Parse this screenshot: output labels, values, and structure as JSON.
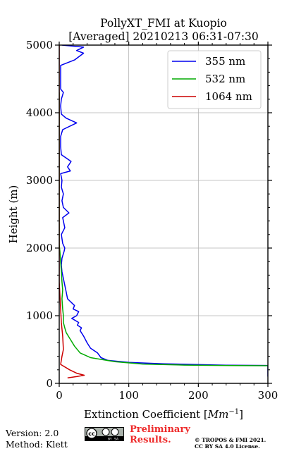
{
  "chart_data": {
    "type": "line",
    "title": "PollyXT_FMI at Kuopio",
    "subtitle": "[Averaged] 20210213 06:31-07:30",
    "xlabel": "Extinction Coefficient [Mm⁻¹]",
    "ylabel": "Height (m)",
    "xlim": [
      0,
      300
    ],
    "ylim": [
      0,
      5000
    ],
    "xticks": [
      "0",
      "100",
      "200",
      "300"
    ],
    "yticks": [
      "0",
      "1000",
      "2000",
      "3000",
      "4000",
      "5000"
    ],
    "grid": true,
    "legend_position": "top-right",
    "series": [
      {
        "name": "355 nm",
        "color": "#0000ee",
        "points": [
          [
            300,
            100
          ],
          [
            300,
            265
          ],
          [
            240,
            268
          ],
          [
            150,
            290
          ],
          [
            100,
            310
          ],
          [
            70,
            340
          ],
          [
            60,
            380
          ],
          [
            55,
            450
          ],
          [
            45,
            520
          ],
          [
            40,
            600
          ],
          [
            35,
            700
          ],
          [
            30,
            780
          ],
          [
            32,
            820
          ],
          [
            26,
            860
          ],
          [
            28,
            900
          ],
          [
            18,
            960
          ],
          [
            25,
            1000
          ],
          [
            28,
            1060
          ],
          [
            20,
            1100
          ],
          [
            22,
            1150
          ],
          [
            12,
            1250
          ],
          [
            10,
            1350
          ],
          [
            8,
            1450
          ],
          [
            6,
            1550
          ],
          [
            4,
            1650
          ],
          [
            3,
            1750
          ],
          [
            4,
            1850
          ],
          [
            7,
            1950
          ],
          [
            8,
            2000
          ],
          [
            5,
            2070
          ],
          [
            3,
            2200
          ],
          [
            8,
            2300
          ],
          [
            5,
            2450
          ],
          [
            14,
            2520
          ],
          [
            6,
            2600
          ],
          [
            4,
            2700
          ],
          [
            6,
            2800
          ],
          [
            3,
            2900
          ],
          [
            4,
            3000
          ],
          [
            3,
            3050
          ],
          [
            2,
            3100
          ],
          [
            16,
            3140
          ],
          [
            12,
            3200
          ],
          [
            17,
            3280
          ],
          [
            10,
            3330
          ],
          [
            3,
            3380
          ],
          [
            2,
            3500
          ],
          [
            2,
            3650
          ],
          [
            5,
            3750
          ],
          [
            25,
            3850
          ],
          [
            10,
            3920
          ],
          [
            3,
            3980
          ],
          [
            2,
            4100
          ],
          [
            3,
            4200
          ],
          [
            6,
            4300
          ],
          [
            2,
            4350
          ],
          [
            2,
            4700
          ],
          [
            22,
            4780
          ],
          [
            35,
            4880
          ],
          [
            25,
            4920
          ],
          [
            35,
            4970
          ],
          [
            4,
            5000
          ]
        ]
      },
      {
        "name": "532 nm",
        "color": "#00aa00",
        "points": [
          [
            300,
            260
          ],
          [
            250,
            263
          ],
          [
            180,
            270
          ],
          [
            120,
            285
          ],
          [
            80,
            320
          ],
          [
            45,
            380
          ],
          [
            30,
            450
          ],
          [
            22,
            550
          ],
          [
            16,
            650
          ],
          [
            10,
            750
          ],
          [
            8,
            820
          ],
          [
            6,
            900
          ],
          [
            6,
            1000
          ],
          [
            5,
            1100
          ],
          [
            4,
            1250
          ],
          [
            5,
            1380
          ],
          [
            4,
            1500
          ],
          [
            3,
            1650
          ],
          [
            2,
            1800
          ],
          [
            1,
            1950
          ],
          [
            0,
            2050
          ],
          [
            0,
            4300
          ]
        ]
      },
      {
        "name": "1064 nm",
        "color": "#cc0000",
        "points": [
          [
            12,
            80
          ],
          [
            25,
            100
          ],
          [
            36,
            120
          ],
          [
            25,
            150
          ],
          [
            15,
            200
          ],
          [
            2,
            280
          ],
          [
            4,
            400
          ],
          [
            6,
            500
          ],
          [
            5,
            700
          ],
          [
            3,
            900
          ],
          [
            2,
            1100
          ],
          [
            1,
            1300
          ],
          [
            0,
            1500
          ],
          [
            0,
            5000
          ]
        ]
      }
    ]
  },
  "footer": {
    "version": "Version: 2.0",
    "method": "Method: Klett",
    "preliminary_line1": "Preliminary",
    "preliminary_line2": "Results.",
    "copyright_line1": "© TROPOS & FMI 2021.",
    "copyright_line2": "CC BY SA 4.0 License."
  }
}
